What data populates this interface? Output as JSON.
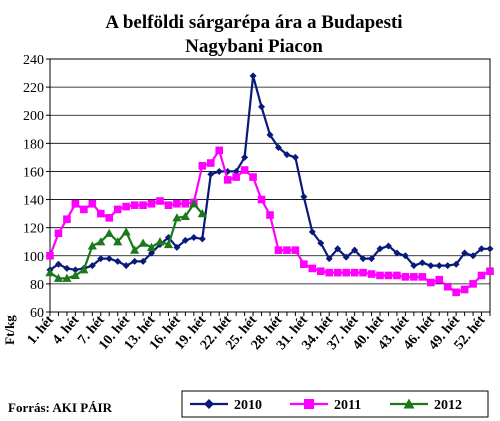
{
  "chart_data": {
    "type": "line",
    "title_line1": "A belföldi sárgarépa ára a Budapesti",
    "title_line2": "Nagybani Piacon",
    "ylabel": "Ft/kg",
    "ylim": [
      60,
      240
    ],
    "yticks": [
      60,
      80,
      100,
      120,
      140,
      160,
      180,
      200,
      220,
      240
    ],
    "x_labels": [
      "1. hét",
      "4. hét",
      "7. hét",
      "10. hét",
      "13. hét",
      "16. hét",
      "19. hét",
      "22. hét",
      "25. hét",
      "28. hét",
      "31. hét",
      "34. hét",
      "37. hét",
      "40. hét",
      "43. hét",
      "46. hét",
      "49. hét",
      "52. hét"
    ],
    "x_range": [
      1,
      53
    ],
    "grid": true,
    "legend_position": "bottom",
    "source": "Forrás: AKI PÁIR",
    "series": [
      {
        "name": "2010",
        "color": "#0a1a7a",
        "marker": "diamond",
        "x": [
          1,
          2,
          3,
          4,
          5,
          6,
          7,
          8,
          9,
          10,
          11,
          12,
          13,
          14,
          15,
          16,
          17,
          18,
          19,
          20,
          21,
          22,
          23,
          24,
          25,
          26,
          27,
          28,
          29,
          30,
          31,
          32,
          33,
          34,
          35,
          36,
          37,
          38,
          39,
          40,
          41,
          42,
          43,
          44,
          45,
          46,
          47,
          48,
          49,
          50,
          51,
          52,
          53
        ],
        "values": [
          90,
          94,
          91,
          90,
          91,
          93,
          98,
          98,
          96,
          93,
          96,
          96,
          102,
          108,
          113,
          106,
          111,
          113,
          112,
          158,
          160,
          160,
          160,
          170,
          228,
          206,
          186,
          177,
          172,
          170,
          142,
          117,
          109,
          98,
          105,
          99,
          104,
          98,
          98,
          105,
          107,
          102,
          100,
          93,
          95,
          93,
          93,
          93,
          94,
          102,
          100,
          105,
          105
        ]
      },
      {
        "name": "2011",
        "color": "#ff00ff",
        "marker": "square",
        "x": [
          1,
          2,
          3,
          4,
          5,
          6,
          7,
          8,
          9,
          10,
          11,
          12,
          13,
          14,
          15,
          16,
          17,
          18,
          19,
          20,
          21,
          22,
          23,
          24,
          25,
          26,
          27,
          28,
          29,
          30,
          31,
          32,
          33,
          34,
          35,
          36,
          37,
          38,
          39,
          40,
          41,
          42,
          43,
          44,
          45,
          46,
          47,
          48,
          49,
          50,
          51,
          52,
          53
        ],
        "values": [
          100,
          116,
          126,
          137,
          133,
          137,
          130,
          127,
          133,
          135,
          136,
          136,
          137,
          139,
          136,
          137,
          137,
          138,
          164,
          166,
          175,
          154,
          156,
          161,
          156,
          140,
          129,
          104,
          104,
          104,
          94,
          91,
          89,
          88,
          88,
          88,
          88,
          88,
          87,
          86,
          86,
          86,
          85,
          85,
          85,
          81,
          83,
          78,
          74,
          76,
          80,
          86,
          89
        ]
      },
      {
        "name": "2012",
        "color": "#1a7a1a",
        "marker": "triangle",
        "x": [
          1,
          2,
          3,
          4,
          5,
          6,
          7,
          8,
          9,
          10,
          11,
          12,
          13,
          14,
          15,
          16,
          17,
          18,
          19
        ],
        "values": [
          88,
          84,
          84,
          86,
          90,
          107,
          110,
          116,
          110,
          117,
          104,
          109,
          106,
          110,
          108,
          127,
          128,
          137,
          130
        ]
      }
    ]
  }
}
